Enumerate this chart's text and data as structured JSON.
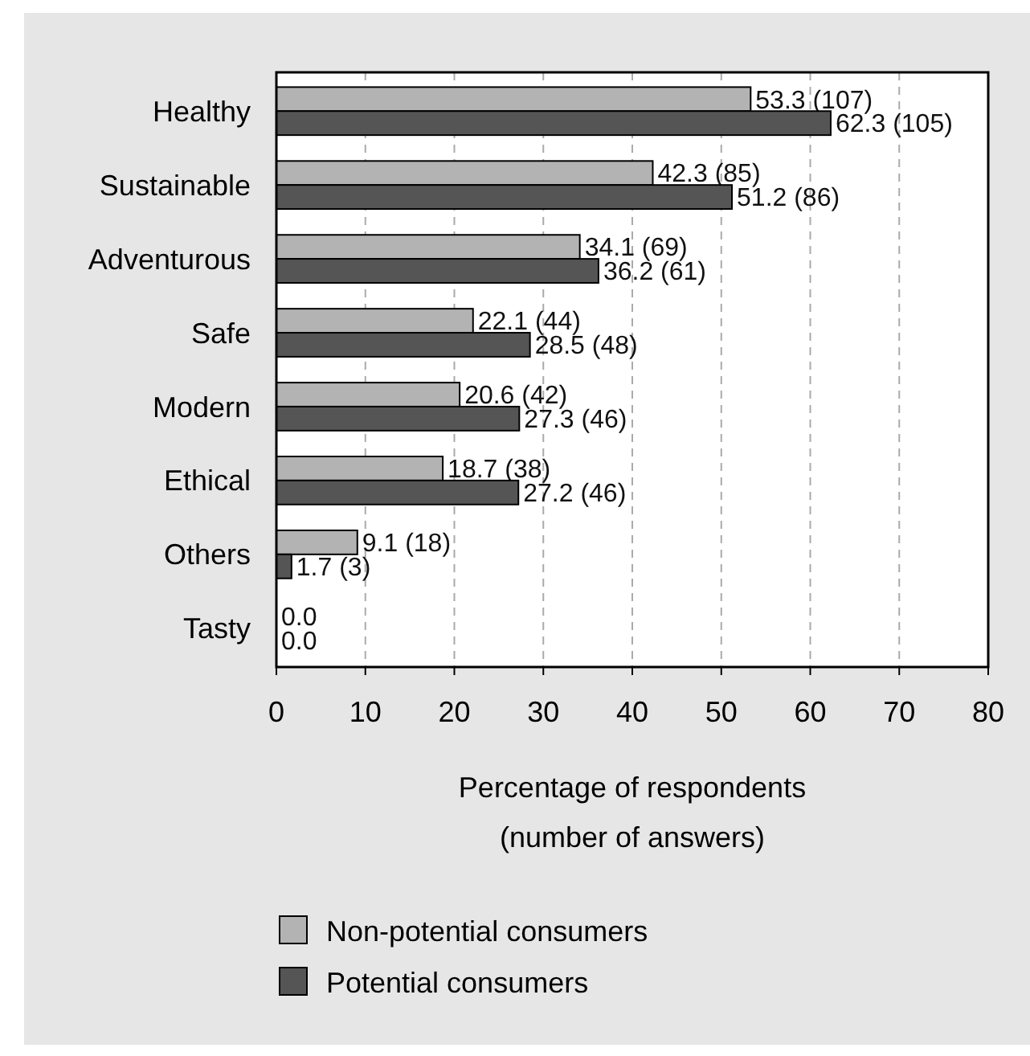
{
  "chart_data": {
    "type": "bar",
    "orientation": "horizontal",
    "categories": [
      "Healthy",
      "Sustainable",
      "Adventurous",
      "Safe",
      "Modern",
      "Ethical",
      "Others",
      "Tasty"
    ],
    "series": [
      {
        "name": "Non-potential consumers",
        "color": "#b3b3b3",
        "values": [
          53.3,
          42.3,
          34.1,
          22.1,
          20.6,
          18.7,
          9.1,
          0.0
        ],
        "value_labels": [
          "53.3 (107)",
          "42.3 (85)",
          "34.1 (69)",
          "22.1 (44)",
          "20.6 (42)",
          "18.7 (38)",
          "9.1 (18)",
          "0.0"
        ]
      },
      {
        "name": "Potential consumers",
        "color": "#555555",
        "values": [
          62.3,
          51.2,
          36.2,
          28.5,
          27.3,
          27.2,
          1.7,
          0.0
        ],
        "value_labels": [
          "62.3 (105)",
          "51.2 (86)",
          "36.2 (61)",
          "28.5 (48)",
          "27.3 (46)",
          "27.2 (46)",
          "1.7 (3)",
          "0.0"
        ]
      }
    ],
    "xlabel": "Percentage of respondents\n(number of answers)",
    "xlim": [
      0,
      80
    ],
    "xticks": [
      0,
      10,
      20,
      30,
      40,
      50,
      60,
      70,
      80
    ],
    "grid": "x",
    "legend": "bottom"
  }
}
